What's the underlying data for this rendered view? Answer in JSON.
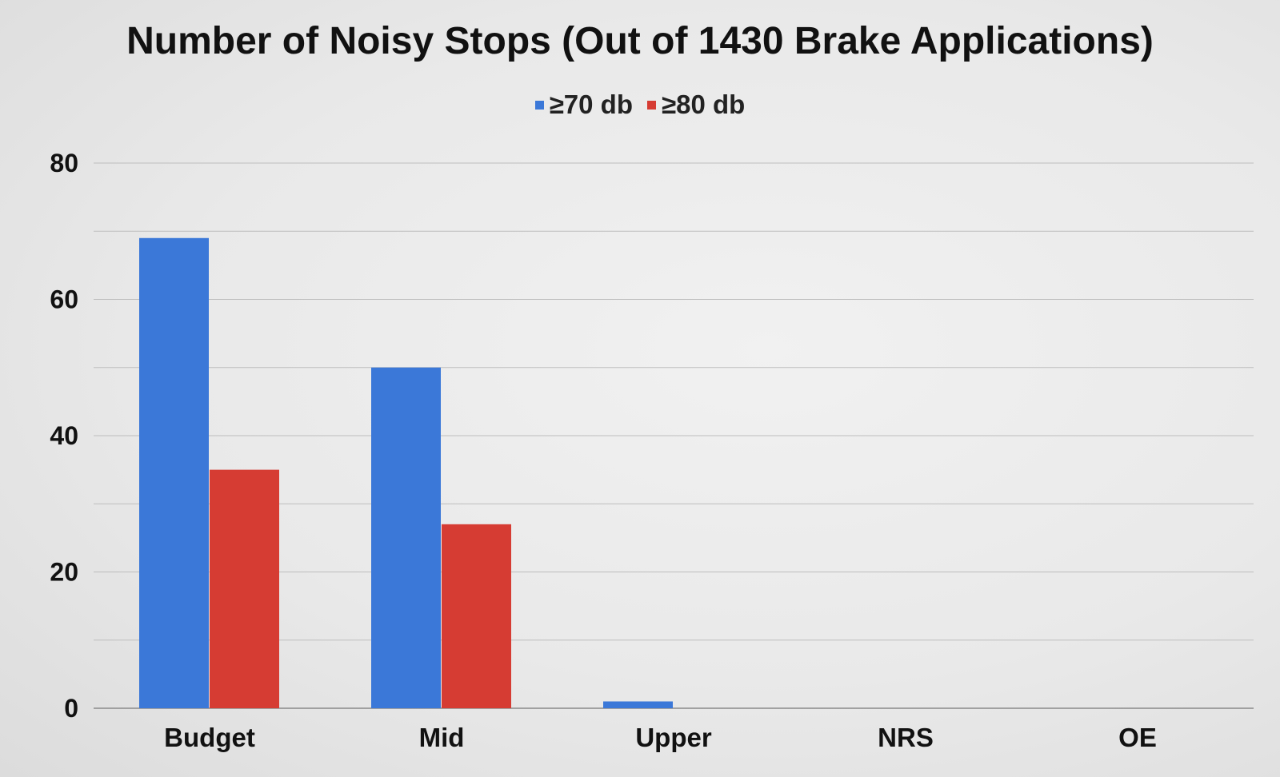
{
  "chart_data": {
    "type": "bar",
    "title": "Number of Noisy Stops (Out of 1430 Brake Applications)",
    "categories": [
      "Budget",
      "Mid",
      "Upper",
      "NRS",
      "OE"
    ],
    "series": [
      {
        "name": "≥70 db",
        "color": "#3b78d8",
        "values": [
          69,
          50,
          1,
          0,
          0
        ]
      },
      {
        "name": "≥80 db",
        "color": "#d63c33",
        "values": [
          35,
          27,
          0,
          0,
          0
        ]
      }
    ],
    "yticks": [
      0,
      20,
      40,
      60,
      80
    ],
    "ylim": [
      0,
      80
    ],
    "grid": true,
    "legend_position": "top-center",
    "xlabel": "",
    "ylabel": ""
  }
}
